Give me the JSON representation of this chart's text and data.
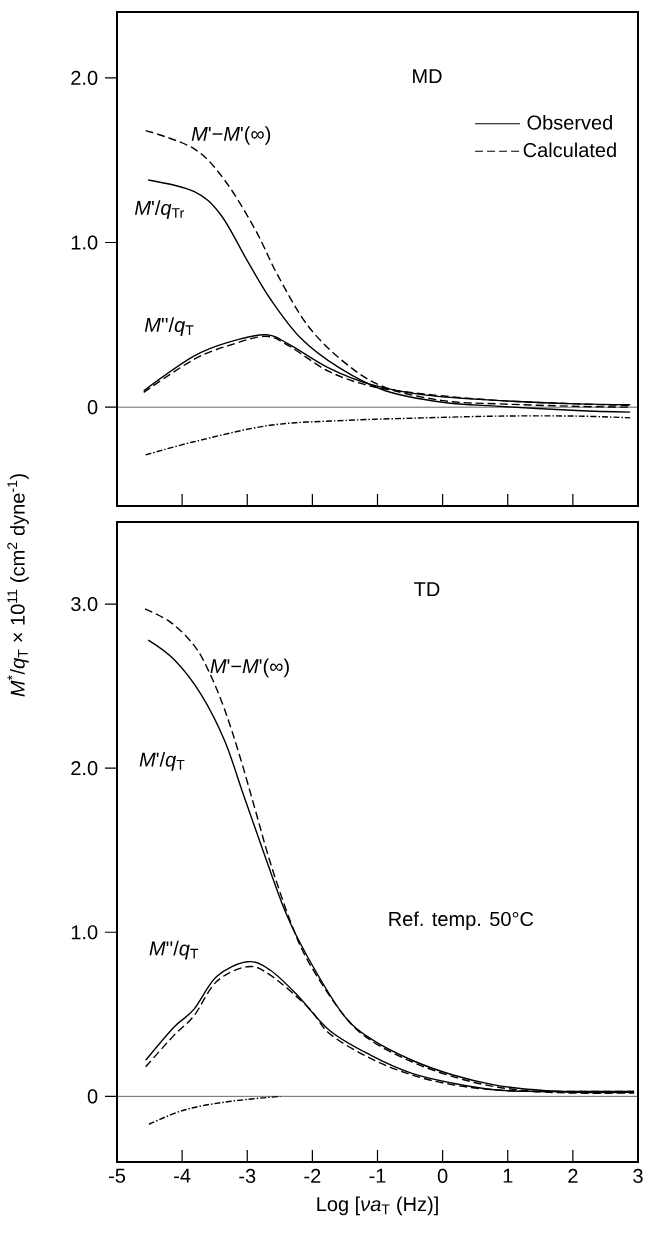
{
  "chart_data": [
    {
      "type": "line",
      "ylabel": "*M*$^{*}$/*q*$_{T}$ × 10$^{11}$ (cm$^{2}$ dyne$^{-1}$)",
      "xlim": [
        -5,
        3
      ],
      "ylim": [
        -0.6,
        2.4
      ],
      "xticks": [
        -5,
        -4,
        -3,
        -2,
        -1,
        0,
        1,
        2,
        3
      ],
      "yticks": [
        0,
        {
          "value": 1,
          "label": "1.0"
        },
        {
          "value": 2,
          "label": "2.0"
        }
      ],
      "tick_labels": "y",
      "legend": "top right",
      "ref_lines": [
        {
          "axis": "y",
          "value": 0,
          "color": "#000000"
        }
      ],
      "annotations": [
        "MD",
        "*M*'−*M*'(∞)",
        "*M*'/*q*$_{Tr}$",
        "*M*''/*q*$_{T}$"
      ],
      "series": [
        {
          "name": "Observed",
          "color": "#000000",
          "line_style": "solid",
          "x": [
            -4.52,
            -3.82,
            -3.41,
            -3.0,
            -2.65,
            -2.18,
            -1.59,
            -0.88,
            0,
            0.88,
            2.06,
            2.88
          ],
          "values": [
            1.38,
            1.31,
            1.17,
            0.89,
            0.66,
            0.42,
            0.24,
            0.1,
            0.03,
            0.005,
            -0.02,
            -0.03
          ]
        },
        {
          "name": "Calculated",
          "color": "#000000",
          "line_style": "dashed",
          "x": [
            -4.56,
            -3.82,
            -3.35,
            -2.88,
            -2.53,
            -2.06,
            -1.47,
            -0.88,
            0,
            0.88,
            2.06,
            2.88
          ],
          "values": [
            1.68,
            1.57,
            1.38,
            1.08,
            0.8,
            0.49,
            0.26,
            0.12,
            0.04,
            0.02,
            0.005,
            0.0
          ]
        },
        {
          "color": "#000000",
          "line_style": "solid",
          "x": [
            -4.59,
            -3.82,
            -3.24,
            -2.71,
            -2.35,
            -1.76,
            -1.12,
            -0.29,
            0.88,
            2.06,
            2.88
          ],
          "values": [
            0.1,
            0.31,
            0.4,
            0.44,
            0.38,
            0.24,
            0.14,
            0.075,
            0.04,
            0.02,
            0.015
          ]
        },
        {
          "color": "#000000",
          "line_style": "dashed",
          "x": [
            -4.59,
            -3.82,
            -3.24,
            -2.71,
            -2.35,
            -1.76,
            -1.12,
            -0.29,
            0.88,
            2.06,
            2.88
          ],
          "values": [
            0.09,
            0.29,
            0.38,
            0.43,
            0.37,
            0.22,
            0.13,
            0.08,
            0.04,
            0.02,
            0.01
          ]
        },
        {
          "color": "#000000",
          "line_style": "dashdot",
          "x": [
            -4.56,
            -3.82,
            -2.65,
            -1.47,
            -0.29,
            0.88,
            2.06,
            2.88
          ],
          "values": [
            -0.29,
            -0.21,
            -0.11,
            -0.08,
            -0.065,
            -0.054,
            -0.054,
            -0.065
          ]
        }
      ]
    },
    {
      "type": "line",
      "xlabel": "Log [*νa*$_{T}$ (Hz)]",
      "xlim": [
        -5,
        3
      ],
      "ylim": [
        -0.4,
        3.5
      ],
      "xticks": [
        -5,
        -4,
        -3,
        -2,
        -1,
        0,
        1,
        2,
        3
      ],
      "yticks": [
        0,
        {
          "value": 1,
          "label": "1.0"
        },
        {
          "value": 2,
          "label": "2.0"
        },
        {
          "value": 3,
          "label": "3.0"
        }
      ],
      "ref_lines": [
        {
          "axis": "y",
          "value": 0,
          "color": "#000000"
        }
      ],
      "annotations": [
        "TD",
        "*M*'−*M*'(∞)",
        "*M*'/*q*$_{T}$",
        "*M*''/*q*$_{T}$",
        "Ref. temp. 50°C"
      ],
      "series": [
        {
          "color": "#000000",
          "line_style": "solid",
          "x": [
            -4.52,
            -4.12,
            -3.71,
            -3.35,
            -3.06,
            -2.76,
            -2.41,
            -2.06,
            -1.53,
            -1.1,
            -0.47,
            0.16,
            0.79,
            1.42,
            2.05,
            2.94
          ],
          "values": [
            2.78,
            2.66,
            2.45,
            2.17,
            1.84,
            1.5,
            1.12,
            0.84,
            0.5,
            0.35,
            0.22,
            0.13,
            0.07,
            0.04,
            0.025,
            0.025
          ]
        },
        {
          "color": "#000000",
          "line_style": "dashed",
          "x": [
            -4.57,
            -4.18,
            -3.82,
            -3.59,
            -3.35,
            -3.12,
            -2.88,
            -2.65,
            -2.35,
            -2.06,
            -1.53,
            -1.1,
            -0.47,
            0.16,
            0.79,
            1.42,
            2.05,
            2.94
          ],
          "values": [
            2.97,
            2.89,
            2.75,
            2.59,
            2.36,
            2.08,
            1.75,
            1.43,
            1.08,
            0.82,
            0.5,
            0.34,
            0.21,
            0.12,
            0.06,
            0.03,
            0.02,
            0.02
          ]
        },
        {
          "color": "#000000",
          "line_style": "solid",
          "x": [
            -4.56,
            -4.13,
            -3.82,
            -3.47,
            -3.0,
            -2.65,
            -2.24,
            -1.73,
            -1.1,
            -0.47,
            0.16,
            0.79,
            1.42,
            2.94
          ],
          "values": [
            0.22,
            0.42,
            0.53,
            0.73,
            0.82,
            0.77,
            0.62,
            0.4,
            0.25,
            0.14,
            0.08,
            0.04,
            0.03,
            0.03
          ]
        },
        {
          "color": "#000000",
          "line_style": "dashed",
          "x": [
            -4.56,
            -4.13,
            -3.82,
            -3.47,
            -3.0,
            -2.65,
            -2.06,
            -1.73,
            -1.1,
            -0.47,
            0.16,
            0.79,
            1.42,
            2.94
          ],
          "values": [
            0.18,
            0.37,
            0.49,
            0.7,
            0.79,
            0.74,
            0.54,
            0.38,
            0.23,
            0.13,
            0.07,
            0.04,
            0.03,
            0.03
          ]
        },
        {
          "color": "#000000",
          "line_style": "dashdot",
          "x": [
            -4.51,
            -3.94,
            -3.25,
            -2.49
          ],
          "values": [
            -0.17,
            -0.08,
            -0.03,
            0.0
          ]
        }
      ]
    }
  ]
}
